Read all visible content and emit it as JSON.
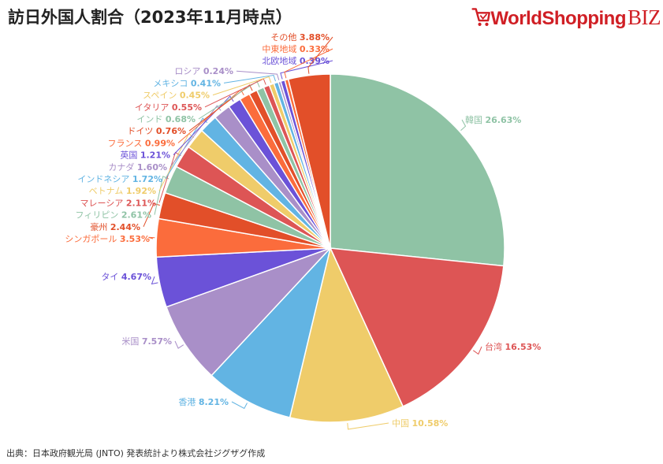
{
  "title": "訪日外国人割合（2023年11月時点）",
  "logo": {
    "text": "WorldShopping",
    "suffix": "BIZ",
    "color": "#d01f25"
  },
  "source": "出典：日本政府観光局 (JNTO) 発表統計より株式会社ジグザグ作成",
  "chart_data": {
    "type": "pie",
    "title": "訪日外国人割合（2023年11月時点）",
    "slices": [
      {
        "label": "韓国",
        "value": 26.63,
        "display": "26.63%",
        "color": "#8fc3a5"
      },
      {
        "label": "台湾",
        "value": 16.53,
        "display": "16.53%",
        "color": "#dd5555"
      },
      {
        "label": "中国",
        "value": 10.58,
        "display": "10.58%",
        "color": "#efcc6a"
      },
      {
        "label": "香港",
        "value": 8.21,
        "display": "8.21%",
        "color": "#62b4e3"
      },
      {
        "label": "米国",
        "value": 7.57,
        "display": "7.57%",
        "color": "#a98fc8"
      },
      {
        "label": "タイ",
        "value": 4.67,
        "display": "4.67%",
        "color": "#6b52d8"
      },
      {
        "label": "シンガポール",
        "value": 3.53,
        "display": "3.53%",
        "color": "#fb6c3c"
      },
      {
        "label": "豪州",
        "value": 2.44,
        "display": "2.44%",
        "color": "#e24f29"
      },
      {
        "label": "フィリピン",
        "value": 2.61,
        "display": "2.61%",
        "color": "#8fc3a5"
      },
      {
        "label": "マレーシア",
        "value": 2.11,
        "display": "2.11%",
        "color": "#dd5555"
      },
      {
        "label": "ベトナム",
        "value": 1.92,
        "display": "1.92%",
        "color": "#efcc6a"
      },
      {
        "label": "インドネシア",
        "value": 1.72,
        "display": "1.72%",
        "color": "#62b4e3"
      },
      {
        "label": "カナダ",
        "value": 1.6,
        "display": "1.60%",
        "color": "#a98fc8"
      },
      {
        "label": "英国",
        "value": 1.21,
        "display": "1.21%",
        "color": "#6b52d8"
      },
      {
        "label": "フランス",
        "value": 0.99,
        "display": "0.99%",
        "color": "#fb6c3c"
      },
      {
        "label": "ドイツ",
        "value": 0.76,
        "display": "0.76%",
        "color": "#e24f29"
      },
      {
        "label": "インド",
        "value": 0.68,
        "display": "0.68%",
        "color": "#8fc3a5"
      },
      {
        "label": "イタリア",
        "value": 0.55,
        "display": "0.55%",
        "color": "#dd5555"
      },
      {
        "label": "スペイン",
        "value": 0.45,
        "display": "0.45%",
        "color": "#efcc6a"
      },
      {
        "label": "メキシコ",
        "value": 0.41,
        "display": "0.41%",
        "color": "#62b4e3"
      },
      {
        "label": "ロシア",
        "value": 0.24,
        "display": "0.24%",
        "color": "#a98fc8"
      },
      {
        "label": "北欧地域",
        "value": 0.39,
        "display": "0.39%",
        "color": "#6b52d8"
      },
      {
        "label": "中東地域",
        "value": 0.33,
        "display": "0.33%",
        "color": "#fb6c3c"
      },
      {
        "label": "その他",
        "value": 3.88,
        "display": "3.88%",
        "color": "#e24f29"
      }
    ]
  }
}
